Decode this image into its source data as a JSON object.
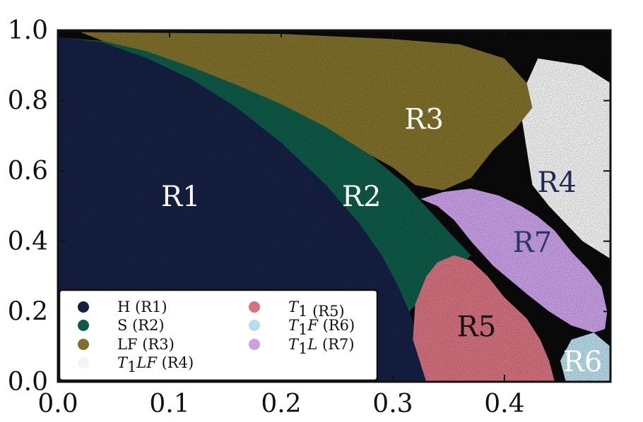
{
  "chart_data": {
    "type": "area",
    "title": "",
    "xlabel": "",
    "ylabel": "",
    "xlim": [
      0.0,
      0.495
    ],
    "ylim": [
      0.0,
      1.0
    ],
    "grid": false,
    "legend_placement": "lower-left",
    "x_ticks": [
      {
        "value": 0.0,
        "label": "0.0"
      },
      {
        "value": 0.1,
        "label": "0.1"
      },
      {
        "value": 0.2,
        "label": "0.2"
      },
      {
        "value": 0.3,
        "label": "0.3"
      },
      {
        "value": 0.4,
        "label": "0.4"
      }
    ],
    "y_ticks": [
      {
        "value": 0.0,
        "label": "0.0"
      },
      {
        "value": 0.2,
        "label": "0.2"
      },
      {
        "value": 0.4,
        "label": "0.4"
      },
      {
        "value": 0.6,
        "label": "0.6"
      },
      {
        "value": 0.8,
        "label": "0.8"
      },
      {
        "value": 1.0,
        "label": "1.0"
      }
    ],
    "regions": [
      {
        "id": "R1",
        "label": "R1",
        "legend": "H (R1)",
        "legend_main": "H",
        "legend_sub": "",
        "legend_rest": " (R1)",
        "italic": false,
        "color": "#152043",
        "label_color": "#ffffff",
        "label_at": [
          0.11,
          0.52
        ],
        "polygon": [
          [
            0.0,
            0.0
          ],
          [
            0.0,
            0.98
          ],
          [
            0.04,
            0.965
          ],
          [
            0.08,
            0.92
          ],
          [
            0.12,
            0.86
          ],
          [
            0.16,
            0.78
          ],
          [
            0.2,
            0.68
          ],
          [
            0.24,
            0.56
          ],
          [
            0.27,
            0.45
          ],
          [
            0.29,
            0.36
          ],
          [
            0.305,
            0.27
          ],
          [
            0.316,
            0.19
          ],
          [
            0.324,
            0.11
          ],
          [
            0.33,
            0.0
          ]
        ]
      },
      {
        "id": "R2",
        "label": "R2",
        "legend": "S (R2)",
        "legend_main": "S",
        "legend_sub": "",
        "legend_rest": " (R2)",
        "italic": false,
        "color": "#0e5a48",
        "label_color": "#ffffff",
        "label_at": [
          0.272,
          0.52
        ],
        "polygon": [
          [
            0.0,
            0.98
          ],
          [
            0.04,
            0.97
          ],
          [
            0.08,
            0.94
          ],
          [
            0.12,
            0.895
          ],
          [
            0.16,
            0.845
          ],
          [
            0.2,
            0.79
          ],
          [
            0.24,
            0.725
          ],
          [
            0.28,
            0.645
          ],
          [
            0.31,
            0.565
          ],
          [
            0.335,
            0.48
          ],
          [
            0.355,
            0.41
          ],
          [
            0.37,
            0.36
          ],
          [
            0.36,
            0.33
          ],
          [
            0.345,
            0.3
          ],
          [
            0.33,
            0.255
          ],
          [
            0.315,
            0.2
          ],
          [
            0.316,
            0.19
          ],
          [
            0.305,
            0.27
          ],
          [
            0.29,
            0.36
          ],
          [
            0.27,
            0.45
          ],
          [
            0.24,
            0.56
          ],
          [
            0.2,
            0.68
          ],
          [
            0.16,
            0.78
          ],
          [
            0.12,
            0.86
          ],
          [
            0.08,
            0.92
          ],
          [
            0.04,
            0.965
          ]
        ]
      },
      {
        "id": "R3",
        "label": "R3",
        "legend": "LF (R3)",
        "legend_main": "LF",
        "legend_sub": "",
        "legend_rest": " (R3)",
        "italic": false,
        "color": "#7f702a",
        "label_color": "#ffffff",
        "label_at": [
          0.328,
          0.74
        ],
        "polygon": [
          [
            0.02,
            0.995
          ],
          [
            0.2,
            0.99
          ],
          [
            0.3,
            0.975
          ],
          [
            0.36,
            0.96
          ],
          [
            0.4,
            0.92
          ],
          [
            0.42,
            0.85
          ],
          [
            0.425,
            0.78
          ],
          [
            0.41,
            0.72
          ],
          [
            0.39,
            0.66
          ],
          [
            0.37,
            0.58
          ],
          [
            0.345,
            0.545
          ],
          [
            0.32,
            0.56
          ],
          [
            0.3,
            0.61
          ],
          [
            0.26,
            0.68
          ],
          [
            0.22,
            0.74
          ],
          [
            0.18,
            0.8
          ],
          [
            0.14,
            0.855
          ],
          [
            0.1,
            0.905
          ],
          [
            0.06,
            0.945
          ]
        ]
      },
      {
        "id": "R4",
        "label": "R4",
        "legend": "T1LF (R4)",
        "legend_main": "T",
        "legend_sub": "1",
        "legend_rest": "LF",
        "legend_tail": " (R4)",
        "italic": true,
        "color": "#f4f4f4",
        "label_color": "#1e2a55",
        "label_at": [
          0.447,
          0.56
        ],
        "polygon": [
          [
            0.43,
            0.92
          ],
          [
            0.47,
            0.9
          ],
          [
            0.495,
            0.85
          ],
          [
            0.495,
            0.35
          ],
          [
            0.47,
            0.4
          ],
          [
            0.455,
            0.45
          ],
          [
            0.44,
            0.5
          ],
          [
            0.425,
            0.56
          ],
          [
            0.42,
            0.66
          ],
          [
            0.415,
            0.76
          ],
          [
            0.42,
            0.85
          ]
        ]
      },
      {
        "id": "R5",
        "label": "R5",
        "legend": "T1 (R5)",
        "legend_main": "T",
        "legend_sub": "1",
        "legend_rest": "",
        "legend_tail": " (R5)",
        "italic": true,
        "color": "#d4727f",
        "label_color": "#111111",
        "label_at": [
          0.375,
          0.15
        ],
        "polygon": [
          [
            0.33,
            0.0
          ],
          [
            0.445,
            0.0
          ],
          [
            0.44,
            0.06
          ],
          [
            0.432,
            0.12
          ],
          [
            0.42,
            0.18
          ],
          [
            0.4,
            0.24
          ],
          [
            0.385,
            0.3
          ],
          [
            0.37,
            0.345
          ],
          [
            0.355,
            0.36
          ],
          [
            0.34,
            0.34
          ],
          [
            0.33,
            0.3
          ],
          [
            0.32,
            0.22
          ],
          [
            0.318,
            0.12
          ]
        ]
      },
      {
        "id": "R6",
        "label": "R6",
        "legend": "T1F (R6)",
        "legend_main": "T",
        "legend_sub": "1",
        "legend_rest": "F",
        "legend_tail": " (R6)",
        "italic": true,
        "color": "#b8dcea",
        "label_color": "#ffffff",
        "label_at": [
          0.47,
          0.05
        ],
        "polygon": [
          [
            0.455,
            0.0
          ],
          [
            0.495,
            0.0
          ],
          [
            0.495,
            0.1
          ],
          [
            0.48,
            0.14
          ],
          [
            0.46,
            0.12
          ],
          [
            0.45,
            0.06
          ]
        ]
      },
      {
        "id": "R7",
        "label": "R7",
        "legend": "T1L (R7)",
        "legend_main": "T",
        "legend_sub": "1",
        "legend_rest": "L",
        "legend_tail": " (R7)",
        "italic": true,
        "color": "#c9a0e8",
        "label_color": "#2a3566",
        "label_at": [
          0.425,
          0.39
        ],
        "polygon": [
          [
            0.325,
            0.52
          ],
          [
            0.345,
            0.54
          ],
          [
            0.37,
            0.55
          ],
          [
            0.395,
            0.53
          ],
          [
            0.415,
            0.5
          ],
          [
            0.43,
            0.47
          ],
          [
            0.445,
            0.43
          ],
          [
            0.46,
            0.37
          ],
          [
            0.475,
            0.32
          ],
          [
            0.487,
            0.27
          ],
          [
            0.492,
            0.2
          ],
          [
            0.49,
            0.15
          ],
          [
            0.48,
            0.14
          ],
          [
            0.46,
            0.16
          ],
          [
            0.44,
            0.2
          ],
          [
            0.42,
            0.25
          ],
          [
            0.405,
            0.29
          ],
          [
            0.39,
            0.33
          ],
          [
            0.37,
            0.4
          ],
          [
            0.355,
            0.46
          ],
          [
            0.34,
            0.5
          ]
        ]
      }
    ],
    "legend_columns": [
      [
        "R1",
        "R2",
        "R3",
        "R4"
      ],
      [
        "R5",
        "R6",
        "R7"
      ]
    ]
  }
}
